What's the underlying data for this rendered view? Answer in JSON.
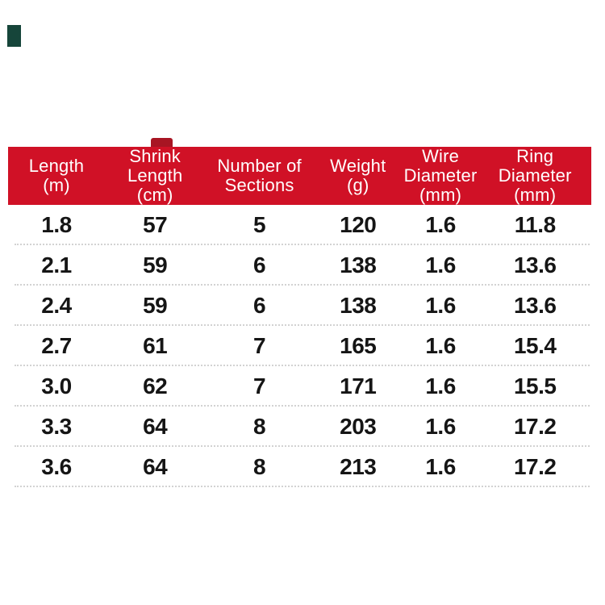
{
  "colors": {
    "header_bg": "#d01126",
    "header_text": "#ffffff",
    "body_text": "#151515",
    "separator": "#d2d2d2",
    "top_left_mark": "#16453a",
    "header_smudge": "#a81523",
    "background": "#ffffff"
  },
  "chart_data": {
    "type": "table",
    "columns": [
      "Length (m)",
      "Shrink Length (cm)",
      "Number of Sections",
      "Weight (g)",
      "Wire Diameter (mm)",
      "Ring Diameter (mm)"
    ],
    "header_lines": [
      "Length\n(m)",
      "Shrink\nLength\n(cm)",
      "Number of\nSections",
      "Weight\n(g)",
      "Wire\nDiameter\n(mm)",
      "Ring\nDiameter\n(mm)"
    ],
    "rows": [
      [
        "1.8",
        "57",
        "5",
        "120",
        "1.6",
        "11.8"
      ],
      [
        "2.1",
        "59",
        "6",
        "138",
        "1.6",
        "13.6"
      ],
      [
        "2.4",
        "59",
        "6",
        "138",
        "1.6",
        "13.6"
      ],
      [
        "2.7",
        "61",
        "7",
        "165",
        "1.6",
        "15.4"
      ],
      [
        "3.0",
        "62",
        "7",
        "171",
        "1.6",
        "15.5"
      ],
      [
        "3.3",
        "64",
        "8",
        "203",
        "1.6",
        "17.2"
      ],
      [
        "3.6",
        "64",
        "8",
        "213",
        "1.6",
        "17.2"
      ]
    ]
  }
}
